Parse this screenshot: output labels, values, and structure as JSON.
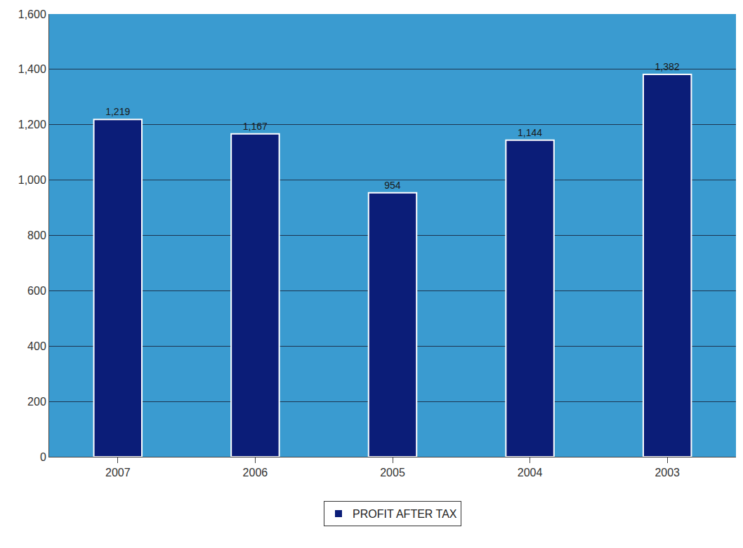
{
  "chart_data": {
    "type": "bar",
    "categories": [
      "2007",
      "2006",
      "2005",
      "2004",
      "2003"
    ],
    "series": [
      {
        "name": "PROFIT AFTER TAX",
        "color": "#0b1d78",
        "values": [
          1219,
          1167,
          954,
          1144,
          1382
        ],
        "value_labels": [
          "1,219",
          "1,167",
          "954",
          "1,144",
          "1,382"
        ]
      }
    ],
    "ylim": [
      0,
      1600
    ],
    "yticks": [
      0,
      200,
      400,
      600,
      800,
      {
        "value": 1000,
        "label": "1,000"
      },
      {
        "value": 1200,
        "label": "1,200"
      },
      {
        "value": 1400,
        "label": "1,400"
      },
      {
        "value": 1600,
        "label": "1,600"
      }
    ],
    "grid": true,
    "data_labels": true,
    "legend": "bottom"
  }
}
